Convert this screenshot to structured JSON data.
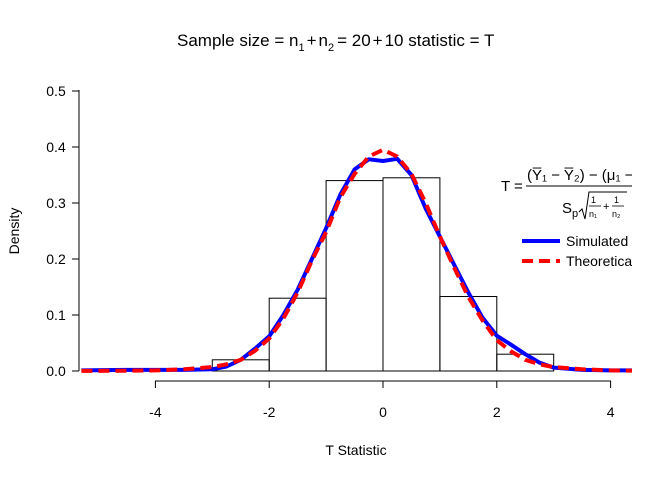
{
  "chart_data": {
    "type": "histogram",
    "title_parts": {
      "lead": "Sample size = n",
      "sub1": "1",
      "plus1": "+",
      "n2": "n",
      "sub2": "2",
      "eq1": "= 20",
      "plus2": "+",
      "tail": "10 statistic = T"
    },
    "xlabel": "T Statistic",
    "ylabel": "Density",
    "xlim": [
      -5.3,
      4.4
    ],
    "ylim": [
      0,
      0.5
    ],
    "x_ticks": [
      "-4",
      "-2",
      "0",
      "2",
      "4"
    ],
    "y_ticks": [
      "0.0",
      "0.1",
      "0.2",
      "0.3",
      "0.4",
      "0.5"
    ],
    "bins": [
      {
        "x0": -3,
        "x1": -2,
        "density": 0.02
      },
      {
        "x0": -2,
        "x1": -1,
        "density": 0.13
      },
      {
        "x0": -1,
        "x1": 0,
        "density": 0.34
      },
      {
        "x0": 0,
        "x1": 1,
        "density": 0.345
      },
      {
        "x0": 1,
        "x1": 2,
        "density": 0.133
      },
      {
        "x0": 2,
        "x1": 3,
        "density": 0.03
      }
    ],
    "series": [
      {
        "name": "Simulated",
        "color": "#0000FF",
        "style": "solid",
        "x": [
          -5.3,
          -4.5,
          -4.0,
          -3.5,
          -3.0,
          -2.75,
          -2.5,
          -2.25,
          -2.0,
          -1.75,
          -1.5,
          -1.25,
          -1.0,
          -0.75,
          -0.5,
          -0.25,
          0.0,
          0.25,
          0.5,
          0.75,
          1.0,
          1.25,
          1.5,
          1.75,
          2.0,
          2.25,
          2.5,
          2.75,
          3.0,
          3.5,
          4.0,
          4.4
        ],
        "y": [
          0.001,
          0.002,
          0.002,
          0.002,
          0.003,
          0.008,
          0.02,
          0.04,
          0.062,
          0.1,
          0.145,
          0.2,
          0.255,
          0.315,
          0.36,
          0.378,
          0.375,
          0.379,
          0.35,
          0.29,
          0.24,
          0.19,
          0.14,
          0.095,
          0.063,
          0.047,
          0.03,
          0.015,
          0.006,
          0.002,
          0.001,
          0.001
        ]
      },
      {
        "name": "Theoretical",
        "color": "#FF0000",
        "style": "dashed",
        "x": [
          -5.3,
          -4.5,
          -4.0,
          -3.5,
          -3.0,
          -2.75,
          -2.5,
          -2.25,
          -2.0,
          -1.75,
          -1.5,
          -1.25,
          -1.0,
          -0.75,
          -0.5,
          -0.25,
          0.0,
          0.25,
          0.5,
          0.75,
          1.0,
          1.25,
          1.5,
          1.75,
          2.0,
          2.25,
          2.5,
          2.75,
          3.0,
          3.5,
          4.0,
          4.4
        ],
        "y": [
          0.0001,
          0.0005,
          0.001,
          0.003,
          0.007,
          0.012,
          0.02,
          0.036,
          0.058,
          0.094,
          0.14,
          0.197,
          0.248,
          0.31,
          0.352,
          0.383,
          0.395,
          0.383,
          0.352,
          0.3,
          0.24,
          0.185,
          0.132,
          0.09,
          0.055,
          0.035,
          0.02,
          0.012,
          0.007,
          0.003,
          0.001,
          0.0005
        ]
      }
    ],
    "legend": {
      "position": "right",
      "entries": [
        "Simulated",
        "Theoretical"
      ]
    },
    "formula": {
      "lhs": "T",
      "eq": "=",
      "numerator": "(Y̅₁ − Y̅₂) − (μ₁ − μ₂)",
      "denom_s": "S",
      "denom_sub": "p",
      "frac1_num": "1",
      "frac1_den": "n₁",
      "frac_plus": "+",
      "frac2_num": "1",
      "frac2_den": "n₂"
    }
  }
}
